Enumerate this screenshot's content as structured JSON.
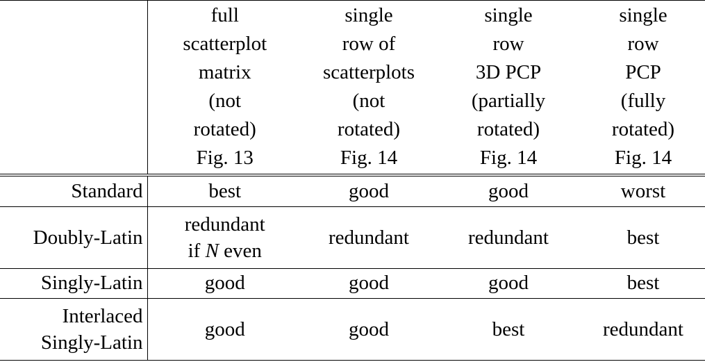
{
  "header": {
    "columns": [
      {
        "lines": [
          "full",
          "scatterplot",
          "matrix",
          "(not",
          "rotated)",
          "Fig. 13"
        ]
      },
      {
        "lines": [
          "single",
          "row of",
          "scatterplots",
          "(not",
          "rotated)",
          "Fig. 14"
        ]
      },
      {
        "lines": [
          "single",
          "row",
          "3D PCP",
          "(partially",
          "rotated)",
          "Fig. 14"
        ]
      },
      {
        "lines": [
          "single",
          "row",
          "PCP",
          "(fully",
          "rotated)",
          "Fig. 14"
        ]
      }
    ]
  },
  "rows": [
    {
      "label_lines": [
        "Standard"
      ],
      "cells": [
        "best",
        "good",
        "good",
        "worst"
      ]
    },
    {
      "label_lines": [
        "Doubly-Latin"
      ],
      "cells": [
        "redundant",
        "redundant",
        "best"
      ],
      "first_cell": {
        "line1": "redundant",
        "line2_prefix": "if ",
        "line2_var": "N",
        "line2_suffix": " even"
      }
    },
    {
      "label_lines": [
        "Singly-Latin"
      ],
      "cells": [
        "good",
        "good",
        "good",
        "best"
      ]
    },
    {
      "label_lines": [
        "Interlaced",
        "Singly-Latin"
      ],
      "cells": [
        "good",
        "good",
        "best",
        "redundant"
      ]
    }
  ]
}
